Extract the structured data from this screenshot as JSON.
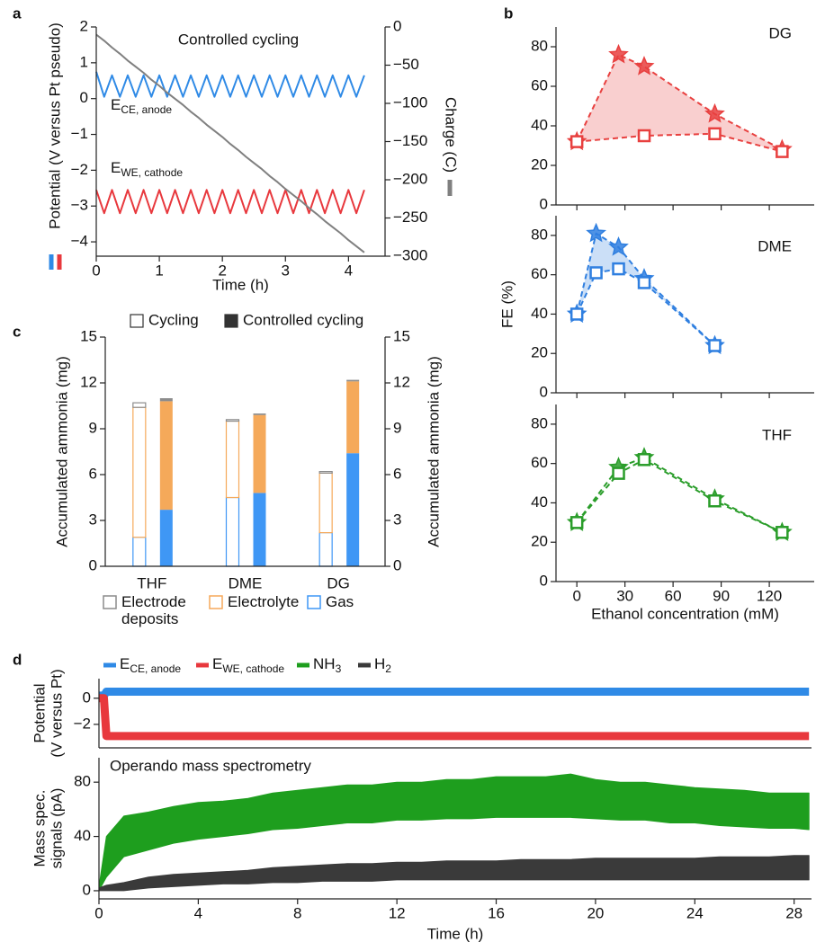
{
  "chart_data": [
    {
      "type": "line",
      "panel": "a",
      "annotations": [
        "Controlled cycling",
        {
          "main": "E",
          "sub": "CE, anode"
        },
        {
          "main": "E",
          "sub": "WE, cathode"
        }
      ],
      "xlabel": "Time (h)",
      "ylabel": "Potential (V versus Pt pseudo)",
      "y2label": "Charge (C)",
      "xlim": [
        0,
        4.58
      ],
      "xticks": [
        0,
        1,
        2,
        3,
        4
      ],
      "ylim": [
        -4.4,
        2
      ],
      "yticks": [
        {
          "value": -4,
          "label": "−4"
        },
        {
          "value": -3,
          "label": "−3"
        },
        {
          "value": -2,
          "label": "−2"
        },
        {
          "value": -1,
          "label": "−1"
        },
        0,
        1,
        2
      ],
      "y2lim": [
        -300,
        0
      ],
      "y2ticks": [
        {
          "value": -300,
          "label": "−300"
        },
        {
          "value": -250,
          "label": "−250"
        },
        {
          "value": -200,
          "label": "−200"
        },
        {
          "value": -150,
          "label": "−150"
        },
        {
          "value": -100,
          "label": "−100"
        },
        {
          "value": -50,
          "label": "−50"
        },
        0
      ],
      "x": [
        0,
        0.125,
        0.25,
        0.375,
        0.5,
        0.625,
        0.75,
        0.875,
        1,
        1.125,
        1.25,
        1.375,
        1.5,
        1.625,
        1.75,
        1.875,
        2,
        2.125,
        2.25,
        2.375,
        2.5,
        2.625,
        2.75,
        2.875,
        3,
        3.125,
        3.25,
        3.375,
        3.5,
        3.625,
        3.75,
        3.875,
        4,
        4.125,
        4.25
      ],
      "series": [
        {
          "color": "#2f8ae6",
          "values": [
            0.75,
            0.05,
            0.65,
            0.05,
            0.65,
            0.05,
            0.65,
            0.05,
            0.65,
            0.05,
            0.65,
            0.05,
            0.65,
            0.05,
            0.65,
            0.05,
            0.65,
            0.05,
            0.65,
            0.05,
            0.65,
            0.05,
            0.65,
            0.05,
            0.65,
            0.05,
            0.65,
            0.05,
            0.65,
            0.05,
            0.65,
            0.05,
            0.65,
            0.05,
            0.65
          ]
        },
        {
          "color": "#e8383d",
          "values": [
            -2.55,
            -3.2,
            -2.55,
            -3.2,
            -2.55,
            -3.2,
            -2.55,
            -3.2,
            -2.55,
            -3.2,
            -2.55,
            -3.2,
            -2.55,
            -3.2,
            -2.55,
            -3.2,
            -2.55,
            -3.2,
            -2.55,
            -3.2,
            -2.55,
            -3.2,
            -2.55,
            -3.2,
            -2.55,
            -3.2,
            -2.55,
            -3.2,
            -2.55,
            -3.2,
            -2.55,
            -3.2,
            -2.55,
            -3.2,
            -2.55
          ]
        },
        {
          "color": "#808080",
          "axis": "y2",
          "values": [
            -10,
            -18,
            -27,
            -35,
            -44,
            -52,
            -60,
            -69,
            -77,
            -86,
            -94,
            -102,
            -111,
            -119,
            -128,
            -136,
            -144,
            -153,
            -161,
            -170,
            -178,
            -186,
            -195,
            -203,
            -212,
            -220,
            -228,
            -237,
            -245,
            -254,
            -262,
            -270,
            -279,
            -287,
            -295
          ]
        }
      ]
    },
    {
      "type": "line",
      "panel": "b",
      "label": "DG",
      "fill_between": true,
      "xlim": [
        -13,
        148
      ],
      "xticks": [
        0,
        30,
        60,
        90,
        120
      ],
      "ylim": [
        0,
        90
      ],
      "yticks": [
        0,
        20,
        40,
        60,
        80
      ],
      "series": [
        {
          "color": "#e8403f",
          "marker": "square",
          "x": [
            0,
            42,
            86,
            128
          ],
          "values": [
            32,
            35,
            36,
            27
          ]
        },
        {
          "color": "#e8403f",
          "marker": "star",
          "x": [
            0,
            26,
            42,
            86,
            128
          ],
          "values": [
            32,
            76,
            70,
            46,
            28
          ]
        }
      ]
    },
    {
      "type": "line",
      "label": "DME",
      "ylabel": "FE (%)",
      "fill_between": true,
      "xlim": [
        -13,
        148
      ],
      "xticks": [
        0,
        30,
        60,
        90,
        120
      ],
      "ylim": [
        0,
        90
      ],
      "yticks": [
        0,
        20,
        40,
        60,
        80
      ],
      "series": [
        {
          "color": "#2f7fe0",
          "marker": "square",
          "x": [
            0,
            12,
            26,
            42,
            86
          ],
          "values": [
            40,
            61,
            63,
            56,
            24
          ]
        },
        {
          "color": "#2f7fe0",
          "marker": "star",
          "x": [
            0,
            12,
            26,
            42,
            86
          ],
          "values": [
            40,
            81,
            74,
            58,
            24
          ]
        }
      ]
    },
    {
      "type": "line",
      "label": "THF",
      "xlabel": "Ethanol concentration (mM)",
      "fill_between": false,
      "xlim": [
        -13,
        148
      ],
      "xticks": [
        0,
        30,
        60,
        90,
        120
      ],
      "ylim": [
        0,
        90
      ],
      "yticks": [
        0,
        20,
        40,
        60,
        80
      ],
      "series": [
        {
          "color": "#2a9d2a",
          "marker": "square",
          "x": [
            0,
            26,
            42,
            86,
            128
          ],
          "values": [
            30,
            55,
            62,
            41,
            25
          ]
        },
        {
          "color": "#2a9d2a",
          "marker": "star",
          "x": [
            0,
            26,
            42,
            86,
            128
          ],
          "values": [
            30,
            58,
            63,
            42,
            25
          ]
        }
      ]
    },
    {
      "type": "bar",
      "panel": "c",
      "ylabel": "Accumulated ammonia (mg)",
      "y2label": "Accumulated ammonia (mg)",
      "categories": [
        "THF",
        "DME",
        "DG"
      ],
      "ylim": [
        0,
        15
      ],
      "yticks": [
        0,
        3,
        6,
        9,
        12,
        15
      ],
      "y2lim": [
        0,
        15
      ],
      "y2ticks": [
        0,
        3,
        6,
        9,
        12,
        15
      ],
      "modes": [
        {
          "name": "Cycling",
          "filled": false
        },
        {
          "name": "Controlled cycling",
          "filled": true
        }
      ],
      "series": [
        {
          "name": "Electrode deposits",
          "color": "#8c8c8c",
          "values": [
            [
              0.3,
              0.2
            ],
            [
              0.1,
              0.1
            ],
            [
              0.1,
              0.1
            ]
          ]
        },
        {
          "name": "Electrolyte",
          "color": "#f5a95a",
          "values": [
            [
              8.5,
              7.1
            ],
            [
              5.0,
              5.1
            ],
            [
              3.9,
              4.7
            ]
          ]
        },
        {
          "name": "Gas",
          "color": "#3f97f5",
          "values": [
            [
              1.9,
              3.7
            ],
            [
              4.5,
              4.8
            ],
            [
              2.2,
              7.4
            ]
          ]
        }
      ]
    },
    {
      "type": "line",
      "panel": "d",
      "legend": "top",
      "ylabel": [
        "Potential",
        "(V versus Pt)"
      ],
      "xlim": [
        0,
        28.7
      ],
      "ylim": [
        -3.8,
        1.5
      ],
      "yticks": [
        {
          "value": -2,
          "label": "−2"
        },
        0
      ],
      "series": [
        {
          "name": "E",
          "subscript": "CE, anode",
          "color": "#2f8ae6",
          "x": [
            0,
            0.2,
            0.3,
            28.6
          ],
          "values": [
            0.2,
            0.2,
            0.5,
            0.5
          ]
        },
        {
          "name": "E",
          "subscript": "WE, cathode",
          "color": "#e8383d",
          "x": [
            0,
            0.2,
            0.3,
            28.6
          ],
          "values": [
            0,
            0,
            -2.9,
            -2.9
          ]
        }
      ]
    },
    {
      "type": "band",
      "legend": "top",
      "annotations": [
        "Operando mass spectrometry"
      ],
      "xlabel": "Time (h)",
      "ylabel": [
        "Mass spec.",
        "signals (pA)"
      ],
      "xlim": [
        0,
        28.7
      ],
      "xticks": [
        0,
        4,
        8,
        12,
        16,
        20,
        24,
        28
      ],
      "ylim": [
        -6,
        98
      ],
      "yticks": [
        0,
        40,
        80
      ],
      "x": [
        0,
        0.3,
        1,
        2,
        3,
        4,
        5,
        6,
        7,
        8,
        9,
        10,
        11,
        12,
        13,
        14,
        15,
        16,
        17,
        18,
        19,
        20,
        21,
        22,
        23,
        24,
        25,
        26,
        27,
        28,
        28.6
      ],
      "series": [
        {
          "name": "NH",
          "subscript": "3",
          "color": "#1e9e1e",
          "values_min": [
            0,
            10,
            25,
            30,
            35,
            38,
            40,
            42,
            45,
            46,
            48,
            50,
            50,
            52,
            52,
            53,
            53,
            54,
            54,
            54,
            54,
            53,
            52,
            52,
            50,
            50,
            48,
            47,
            46,
            46,
            45
          ],
          "values_max": [
            3,
            40,
            55,
            58,
            62,
            65,
            66,
            68,
            72,
            74,
            76,
            78,
            78,
            80,
            80,
            82,
            82,
            84,
            84,
            84,
            86,
            82,
            80,
            80,
            78,
            76,
            75,
            74,
            72,
            72,
            72
          ]
        },
        {
          "name": "H",
          "subscript": "2",
          "color": "#3a3a3a",
          "values_min": [
            0,
            0,
            0,
            2,
            3,
            4,
            5,
            5,
            6,
            6,
            7,
            7,
            7,
            8,
            8,
            8,
            8,
            8,
            8,
            8,
            8,
            8,
            8,
            8,
            8,
            8,
            8,
            8,
            8,
            8,
            8
          ],
          "values_max": [
            2,
            4,
            6,
            10,
            12,
            13,
            14,
            15,
            17,
            18,
            19,
            20,
            20,
            21,
            21,
            22,
            22,
            22,
            23,
            23,
            23,
            24,
            24,
            24,
            24,
            24,
            25,
            25,
            25,
            26,
            26
          ]
        }
      ]
    }
  ]
}
